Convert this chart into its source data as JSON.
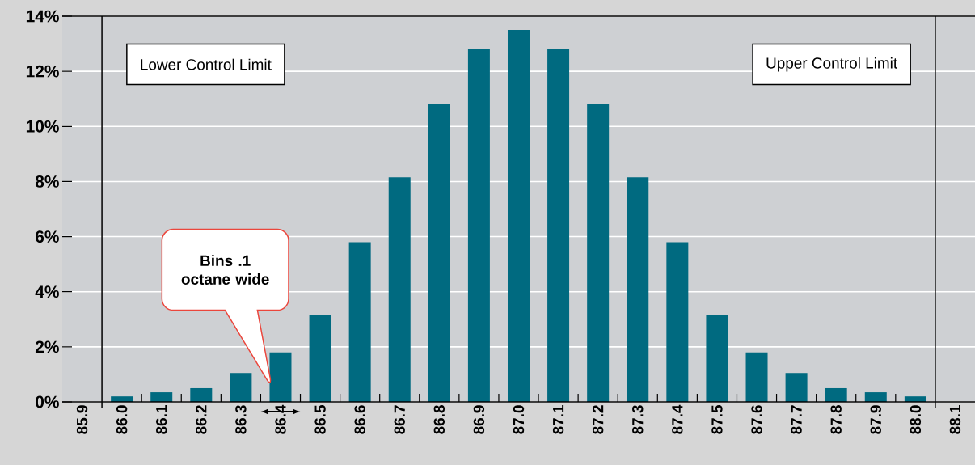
{
  "chart_data": {
    "type": "bar",
    "color": "#006a80",
    "x": [
      86.0,
      86.1,
      86.2,
      86.3,
      86.4,
      86.5,
      86.6,
      86.7,
      86.8,
      86.9,
      87.0,
      87.1,
      87.2,
      87.3,
      87.4,
      87.5,
      87.6,
      87.7,
      87.8,
      87.9,
      88.0
    ],
    "values": [
      0.2,
      0.35,
      0.5,
      1.05,
      1.8,
      3.15,
      5.8,
      8.15,
      10.8,
      12.8,
      13.5,
      12.8,
      10.8,
      8.15,
      5.8,
      3.15,
      1.8,
      1.05,
      0.5,
      0.35,
      0.2
    ],
    "xlim": [
      85.85,
      88.15
    ],
    "ylim": [
      0,
      14
    ],
    "xticks": [
      {
        "value": 85.9,
        "label": "85.9"
      },
      {
        "value": 86.0,
        "label": "86.0"
      },
      {
        "value": 86.1,
        "label": "86.1"
      },
      {
        "value": 86.2,
        "label": "86.2"
      },
      {
        "value": 86.3,
        "label": "86.3"
      },
      {
        "value": 86.4,
        "label": "86.4"
      },
      {
        "value": 86.5,
        "label": "86.5"
      },
      {
        "value": 86.6,
        "label": "86.6"
      },
      {
        "value": 86.7,
        "label": "86.7"
      },
      {
        "value": 86.8,
        "label": "86.8"
      },
      {
        "value": 86.9,
        "label": "86.9"
      },
      {
        "value": 87.0,
        "label": "87.0"
      },
      {
        "value": 87.1,
        "label": "87.1"
      },
      {
        "value": 87.2,
        "label": "87.2"
      },
      {
        "value": 87.3,
        "label": "87.3"
      },
      {
        "value": 87.4,
        "label": "87.4"
      },
      {
        "value": 87.5,
        "label": "87.5"
      },
      {
        "value": 87.6,
        "label": "87.6"
      },
      {
        "value": 87.7,
        "label": "87.7"
      },
      {
        "value": 87.8,
        "label": "87.8"
      },
      {
        "value": 87.9,
        "label": "87.9"
      },
      {
        "value": 88.0,
        "label": "88.0"
      },
      {
        "value": 88.1,
        "label": "88.1"
      },
      {
        "value": 86.05,
        "label": null
      },
      {
        "value": 86.15,
        "label": null
      },
      {
        "value": 86.25,
        "label": null
      },
      {
        "value": 86.35,
        "label": null
      },
      {
        "value": 86.45,
        "label": null
      },
      {
        "value": 86.55,
        "label": null
      },
      {
        "value": 86.65,
        "label": null
      },
      {
        "value": 86.75,
        "label": null
      },
      {
        "value": 86.85,
        "label": null
      },
      {
        "value": 86.95,
        "label": null
      },
      {
        "value": 87.05,
        "label": null
      },
      {
        "value": 87.15,
        "label": null
      },
      {
        "value": 87.25,
        "label": null
      },
      {
        "value": 87.35,
        "label": null
      },
      {
        "value": 87.45,
        "label": null
      },
      {
        "value": 87.55,
        "label": null
      },
      {
        "value": 87.65,
        "label": null
      },
      {
        "value": 87.75,
        "label": null
      },
      {
        "value": 87.85,
        "label": null
      },
      {
        "value": 87.95,
        "label": null
      }
    ],
    "yticks": [
      {
        "value": 0,
        "label": "0%"
      },
      {
        "value": 2,
        "label": "2%"
      },
      {
        "value": 4,
        "label": "4%"
      },
      {
        "value": 6,
        "label": "6%"
      },
      {
        "value": 8,
        "label": "8%"
      },
      {
        "value": 10,
        "label": "10%"
      },
      {
        "value": 12,
        "label": "12%"
      },
      {
        "value": 14,
        "label": "14%"
      }
    ],
    "grid": "y",
    "ref_lines": [
      {
        "axis": "x",
        "value": 85.95,
        "label": "Lower Control Limit",
        "color": "#000000"
      },
      {
        "axis": "x",
        "value": 88.05,
        "label": "Upper Control Limit",
        "color": "#000000"
      }
    ],
    "annotations": [
      "Bins .1 octane wide"
    ]
  }
}
